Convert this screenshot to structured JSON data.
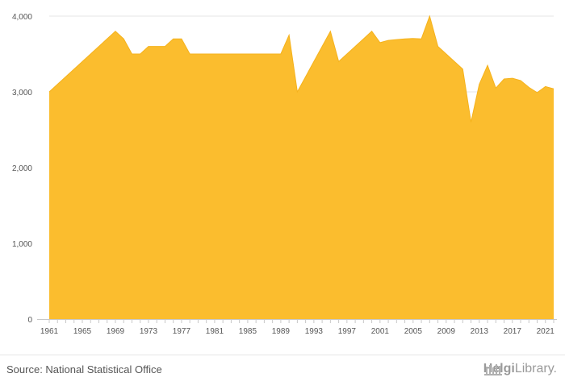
{
  "chart_data": {
    "type": "area",
    "x": [
      1961,
      1969,
      1970,
      1971,
      1972,
      1973,
      1974,
      1975,
      1976,
      1977,
      1978,
      1979,
      1980,
      1981,
      1982,
      1983,
      1984,
      1985,
      1986,
      1987,
      1988,
      1989,
      1990,
      1991,
      1992,
      1993,
      1994,
      1995,
      1996,
      1997,
      1998,
      1999,
      2000,
      2001,
      2002,
      2003,
      2004,
      2005,
      2006,
      2007,
      2008,
      2009,
      2010,
      2011,
      2012,
      2013,
      2014,
      2015,
      2016,
      2017,
      2018,
      2019,
      2020,
      2021,
      2022
    ],
    "values": [
      3000,
      3800,
      3700,
      3500,
      3500,
      3600,
      3600,
      3600,
      3700,
      3700,
      3500,
      3500,
      3500,
      3500,
      3500,
      3500,
      3500,
      3500,
      3500,
      3500,
      3500,
      3500,
      3750,
      3000,
      3200,
      3400,
      3600,
      3800,
      3400,
      3500,
      3600,
      3700,
      3800,
      3650,
      3680,
      3690,
      3700,
      3705,
      3700,
      4000,
      3600,
      3500,
      3400,
      3300,
      2600,
      3100,
      3350,
      3050,
      3170,
      3180,
      3150,
      3060,
      2990,
      3070,
      3040
    ],
    "xticks": [
      "1961",
      "1965",
      "1969",
      "1973",
      "1977",
      "1981",
      "1985",
      "1989",
      "1993",
      "1997",
      "2001",
      "2005",
      "2009",
      "2013",
      "2017",
      "2021"
    ],
    "yticks": [
      "0",
      "1,000",
      "2,000",
      "3,000",
      "4,000"
    ],
    "ylim": [
      0,
      4000
    ],
    "xlim": [
      1961,
      2022
    ],
    "title": "",
    "xlabel": "",
    "ylabel": "",
    "grid": "horizontal",
    "fill_color": "#fbbd2e",
    "line_color": "#f5b21c"
  },
  "footer": {
    "source": "Source: National Statistical Office",
    "brand_part1": "Helgi",
    "brand_part2": "Library."
  },
  "colors": {
    "grid": "#e6e6e6",
    "tick_text": "#555555",
    "brand": "#9a9a9a"
  }
}
